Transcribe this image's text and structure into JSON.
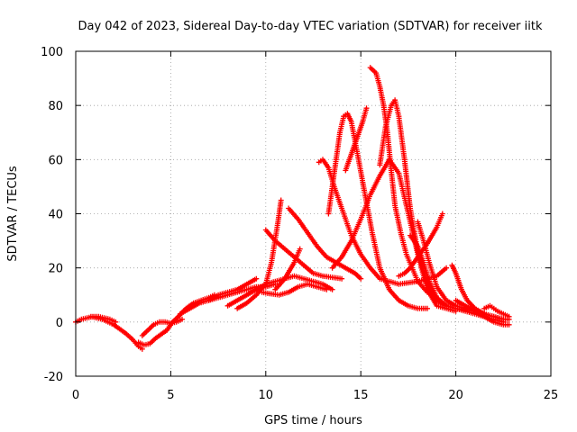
{
  "chart_data": {
    "type": "scatter",
    "title": "Day 042 of 2023, Sidereal Day-to-day VTEC variation (SDTVAR) for receiver iitk",
    "xlabel": "GPS time / hours",
    "ylabel": "SDTVAR / TECUs",
    "xlim": [
      0,
      25
    ],
    "ylim": [
      -20,
      100
    ],
    "xticks": [
      0,
      5,
      10,
      15,
      20,
      25
    ],
    "yticks": [
      -20,
      0,
      20,
      40,
      60,
      80,
      100
    ],
    "grid": true,
    "marker": "+",
    "color": "#ff0000",
    "series": [
      {
        "x": [
          0.0,
          0.3,
          0.6,
          0.9,
          1.2,
          1.5,
          1.8,
          2.1
        ],
        "y": [
          0.0,
          1.0,
          1.5,
          2.0,
          2.0,
          1.5,
          1.0,
          0.0
        ]
      },
      {
        "x": [
          0.8,
          1.1,
          1.4,
          1.7,
          2.0,
          2.3,
          2.6,
          3.0,
          3.3,
          3.5
        ],
        "y": [
          2.0,
          1.5,
          1.0,
          0.0,
          -1.0,
          -2.5,
          -4.0,
          -6.5,
          -9.0,
          -10.0
        ]
      },
      {
        "x": [
          3.3,
          3.6,
          3.9,
          4.2,
          4.5,
          4.8,
          5.1,
          5.4,
          5.8,
          6.2,
          6.6,
          7.0,
          7.3
        ],
        "y": [
          -7.5,
          -8.5,
          -8.0,
          -6.0,
          -4.5,
          -3.0,
          0.0,
          2.0,
          5.0,
          7.0,
          8.0,
          9.0,
          10.0
        ]
      },
      {
        "x": [
          3.5,
          3.8,
          4.1,
          4.4,
          4.7,
          5.0,
          5.3,
          5.6
        ],
        "y": [
          -5.0,
          -3.0,
          -1.0,
          0.0,
          0.0,
          -0.5,
          0.0,
          1.0
        ]
      },
      {
        "x": [
          5.5,
          6.0,
          6.5,
          7.0,
          7.5,
          8.0,
          8.5,
          9.0,
          9.5,
          10.0,
          10.5
        ],
        "y": [
          3.0,
          5.0,
          7.0,
          8.0,
          9.0,
          10.0,
          11.0,
          12.0,
          13.0,
          13.0,
          14.0
        ]
      },
      {
        "x": [
          7.0,
          7.5,
          8.0,
          8.5,
          9.0,
          9.5
        ],
        "y": [
          8.0,
          10.0,
          11.0,
          12.0,
          14.0,
          16.0
        ]
      },
      {
        "x": [
          8.0,
          8.5,
          9.0,
          9.5,
          10.0,
          10.5,
          11.0,
          11.5,
          12.0,
          12.5,
          13.0,
          13.5
        ],
        "y": [
          6.0,
          8.0,
          10.0,
          12.0,
          14.0,
          15.0,
          16.0,
          17.0,
          16.0,
          15.0,
          14.0,
          12.0
        ]
      },
      {
        "x": [
          8.5,
          9.0,
          9.5,
          10.0,
          10.3,
          10.6,
          10.8
        ],
        "y": [
          5.0,
          7.0,
          10.0,
          14.0,
          22.0,
          35.0,
          45.0
        ]
      },
      {
        "x": [
          9.8,
          10.2,
          10.7,
          11.2,
          11.7,
          12.2,
          12.7,
          13.2
        ],
        "y": [
          11.0,
          10.5,
          10.0,
          11.0,
          13.0,
          14.0,
          13.0,
          12.0
        ]
      },
      {
        "x": [
          10.0,
          10.5,
          11.0,
          11.5,
          12.0,
          12.5,
          13.0,
          13.5,
          14.0
        ],
        "y": [
          34.0,
          30.0,
          27.0,
          24.0,
          21.0,
          18.0,
          17.0,
          16.5,
          16.0
        ]
      },
      {
        "x": [
          10.5,
          11.0,
          11.5,
          11.8
        ],
        "y": [
          12.0,
          16.0,
          22.0,
          27.0
        ]
      },
      {
        "x": [
          11.2,
          11.7,
          12.2,
          12.7,
          13.2,
          13.7,
          14.2,
          14.7,
          15.0
        ],
        "y": [
          42.0,
          38.0,
          33.0,
          28.0,
          24.0,
          22.0,
          20.0,
          18.0,
          16.0
        ]
      },
      {
        "x": [
          12.8,
          13.0,
          13.3,
          13.6,
          14.0,
          14.5,
          15.0,
          15.5,
          16.0,
          17.0,
          18.0,
          19.0,
          19.5
        ],
        "y": [
          59.0,
          60.0,
          57.0,
          50.0,
          42.0,
          32.0,
          25.0,
          20.0,
          16.0,
          14.0,
          15.0,
          17.0,
          20.0
        ]
      },
      {
        "x": [
          13.3,
          13.6,
          13.9,
          14.1,
          14.3,
          14.5,
          14.8,
          15.2,
          15.6,
          16.0,
          16.5,
          17.0,
          17.5,
          18.0,
          18.5
        ],
        "y": [
          40.0,
          55.0,
          70.0,
          76.0,
          77.0,
          74.0,
          63.0,
          48.0,
          33.0,
          20.0,
          12.0,
          8.0,
          6.0,
          5.0,
          5.0
        ]
      },
      {
        "x": [
          14.2,
          14.5,
          14.8,
          15.1,
          15.3
        ],
        "y": [
          56.0,
          62.0,
          68.0,
          74.0,
          79.0
        ]
      },
      {
        "x": [
          13.5,
          14.0,
          14.5,
          15.0,
          15.5,
          16.0,
          16.5,
          17.0,
          17.5,
          18.0,
          18.5,
          19.0,
          19.5,
          20.0
        ],
        "y": [
          20.0,
          24.0,
          30.0,
          38.0,
          47.0,
          54.0,
          60.0,
          55.0,
          40.0,
          25.0,
          12.0,
          6.0,
          5.0,
          4.0
        ]
      },
      {
        "x": [
          15.5,
          15.8,
          16.0,
          16.2,
          16.4,
          16.6,
          16.8,
          17.1,
          17.4,
          17.7,
          18.0,
          18.5,
          19.0
        ],
        "y": [
          94.0,
          92.0,
          87.0,
          80.0,
          70.0,
          56.0,
          43.0,
          33.0,
          25.0,
          20.0,
          15.0,
          11.0,
          9.0
        ]
      },
      {
        "x": [
          16.0,
          16.3,
          16.6,
          16.8,
          17.0,
          17.3,
          17.6,
          18.0,
          18.5,
          19.0,
          19.5,
          20.0,
          20.5,
          21.0
        ],
        "y": [
          58.0,
          72.0,
          80.0,
          82.0,
          76.0,
          60.0,
          42.0,
          26.0,
          14.0,
          8.0,
          6.0,
          5.0,
          4.5,
          4.0
        ]
      },
      {
        "x": [
          17.0,
          17.3,
          17.6,
          18.0,
          18.5,
          19.0,
          19.3
        ],
        "y": [
          17.0,
          18.0,
          20.0,
          24.0,
          29.0,
          35.0,
          40.0
        ]
      },
      {
        "x": [
          17.6,
          18.0,
          18.3,
          18.6,
          19.0,
          19.5,
          20.0,
          20.5,
          21.0,
          21.5,
          22.0,
          22.5
        ],
        "y": [
          32.0,
          28.0,
          22.0,
          15.0,
          9.0,
          6.0,
          5.0,
          4.0,
          3.0,
          2.0,
          1.0,
          0.0
        ]
      },
      {
        "x": [
          18.0,
          18.3,
          18.6,
          19.0,
          19.5,
          20.0,
          20.5,
          21.0,
          21.5,
          22.0,
          22.5
        ],
        "y": [
          37.0,
          30.0,
          22.0,
          13.0,
          8.0,
          6.0,
          5.0,
          4.0,
          3.0,
          2.0,
          1.0
        ]
      },
      {
        "x": [
          19.8,
          20.0,
          20.3,
          20.6,
          21.0,
          21.5,
          22.0,
          22.5,
          22.8
        ],
        "y": [
          21.0,
          18.0,
          12.0,
          8.0,
          5.0,
          3.0,
          2.0,
          1.0,
          1.0
        ]
      },
      {
        "x": [
          20.0,
          20.5,
          21.0,
          21.5,
          22.0,
          22.5,
          22.8
        ],
        "y": [
          8.0,
          6.0,
          4.0,
          2.0,
          0.0,
          -1.0,
          -1.0
        ]
      },
      {
        "x": [
          21.5,
          21.8,
          22.0,
          22.2,
          22.5,
          22.8
        ],
        "y": [
          5.0,
          6.0,
          5.0,
          4.0,
          3.0,
          2.0
        ]
      }
    ]
  }
}
